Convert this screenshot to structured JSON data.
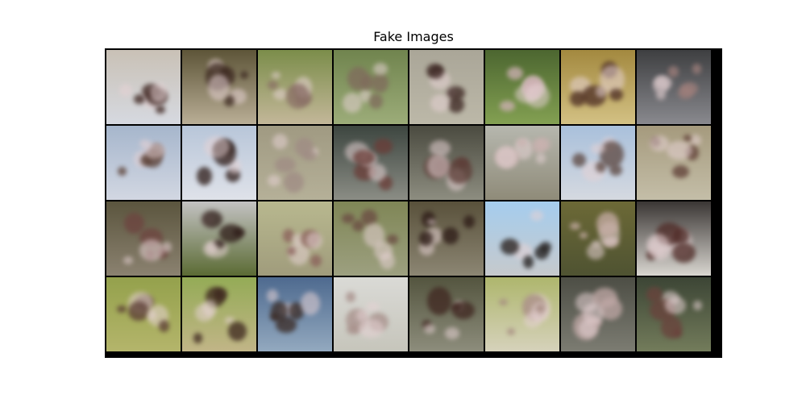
{
  "figure": {
    "title": "Fake Images"
  },
  "grid": {
    "rows": 4,
    "cols": 8,
    "frame_color": "#000000",
    "tiles": [
      {
        "top": "#c9c1b6",
        "bottom": "#d6d9e0",
        "blob": "#3a211c"
      },
      {
        "top": "#5d5538",
        "bottom": "#b9ae96",
        "blob": "#3e2a22"
      },
      {
        "top": "#7b8d4a",
        "bottom": "#c3b799",
        "blob": "#8a6f66"
      },
      {
        "top": "#70844e",
        "bottom": "#9cac79",
        "blob": "#7f6a5c"
      },
      {
        "top": "#aaa698",
        "bottom": "#bcb8a8",
        "blob": "#3a2420"
      },
      {
        "top": "#4c6630",
        "bottom": "#83a052",
        "blob": "#cfb1b5"
      },
      {
        "top": "#a3893f",
        "bottom": "#d3c184",
        "blob": "#4c2c24"
      },
      {
        "top": "#3e3f41",
        "bottom": "#89898e",
        "blob": "#9f7f7b"
      },
      {
        "top": "#a6b6cc",
        "bottom": "#d2d7e2",
        "blob": "#5a3f34"
      },
      {
        "top": "#b8c6d9",
        "bottom": "#dfe2e9",
        "blob": "#2c1a16"
      },
      {
        "top": "#a09a82",
        "bottom": "#b5b098",
        "blob": "#9f8b84"
      },
      {
        "top": "#3d4640",
        "bottom": "#8b8d85",
        "blob": "#6a3c37"
      },
      {
        "top": "#4b4b40",
        "bottom": "#8d8d80",
        "blob": "#5d3d37"
      },
      {
        "top": "#b6b7ae",
        "bottom": "#8f8b79",
        "blob": "#cab2b0"
      },
      {
        "top": "#a9c0db",
        "bottom": "#d5d9e0",
        "blob": "#5b453e"
      },
      {
        "top": "#a59a7d",
        "bottom": "#c4bea8",
        "blob": "#5e3d35"
      },
      {
        "top": "#5b553e",
        "bottom": "#8b8270",
        "blob": "#6d433f"
      },
      {
        "top": "#c3c2c2",
        "bottom": "#5b6b34",
        "blob": "#2e1c18"
      },
      {
        "top": "#b8b88f",
        "bottom": "#a09c7c",
        "blob": "#8a5f5a"
      },
      {
        "top": "#7f8656",
        "bottom": "#9da080",
        "blob": "#6a4a42"
      },
      {
        "top": "#59513b",
        "bottom": "#8c8673",
        "blob": "#2c1a16"
      },
      {
        "top": "#a5cdee",
        "bottom": "#c6c9cc",
        "blob": "#1f1a18"
      },
      {
        "top": "#6c6936",
        "bottom": "#4f5332",
        "blob": "#c8aea7"
      },
      {
        "top": "#3a3634",
        "bottom": "#d9d6d0",
        "blob": "#4f2b27"
      },
      {
        "top": "#94a14c",
        "bottom": "#b4b56b",
        "blob": "#5a3b34"
      },
      {
        "top": "#94ab56",
        "bottom": "#c1b587",
        "blob": "#3c251e"
      },
      {
        "top": "#4e6a8f",
        "bottom": "#93a9bf",
        "blob": "#3a2a24"
      },
      {
        "top": "#dadad6",
        "bottom": "#c6c5bb",
        "blob": "#a78f8a"
      },
      {
        "top": "#54553f",
        "bottom": "#8d8d7c",
        "blob": "#3f2620"
      },
      {
        "top": "#aeb66d",
        "bottom": "#d6d2bb",
        "blob": "#a58a80"
      },
      {
        "top": "#4d4e45",
        "bottom": "#7c7c72",
        "blob": "#c0a8a6"
      },
      {
        "top": "#3c4535",
        "bottom": "#737c5b",
        "blob": "#6a423c"
      }
    ]
  }
}
